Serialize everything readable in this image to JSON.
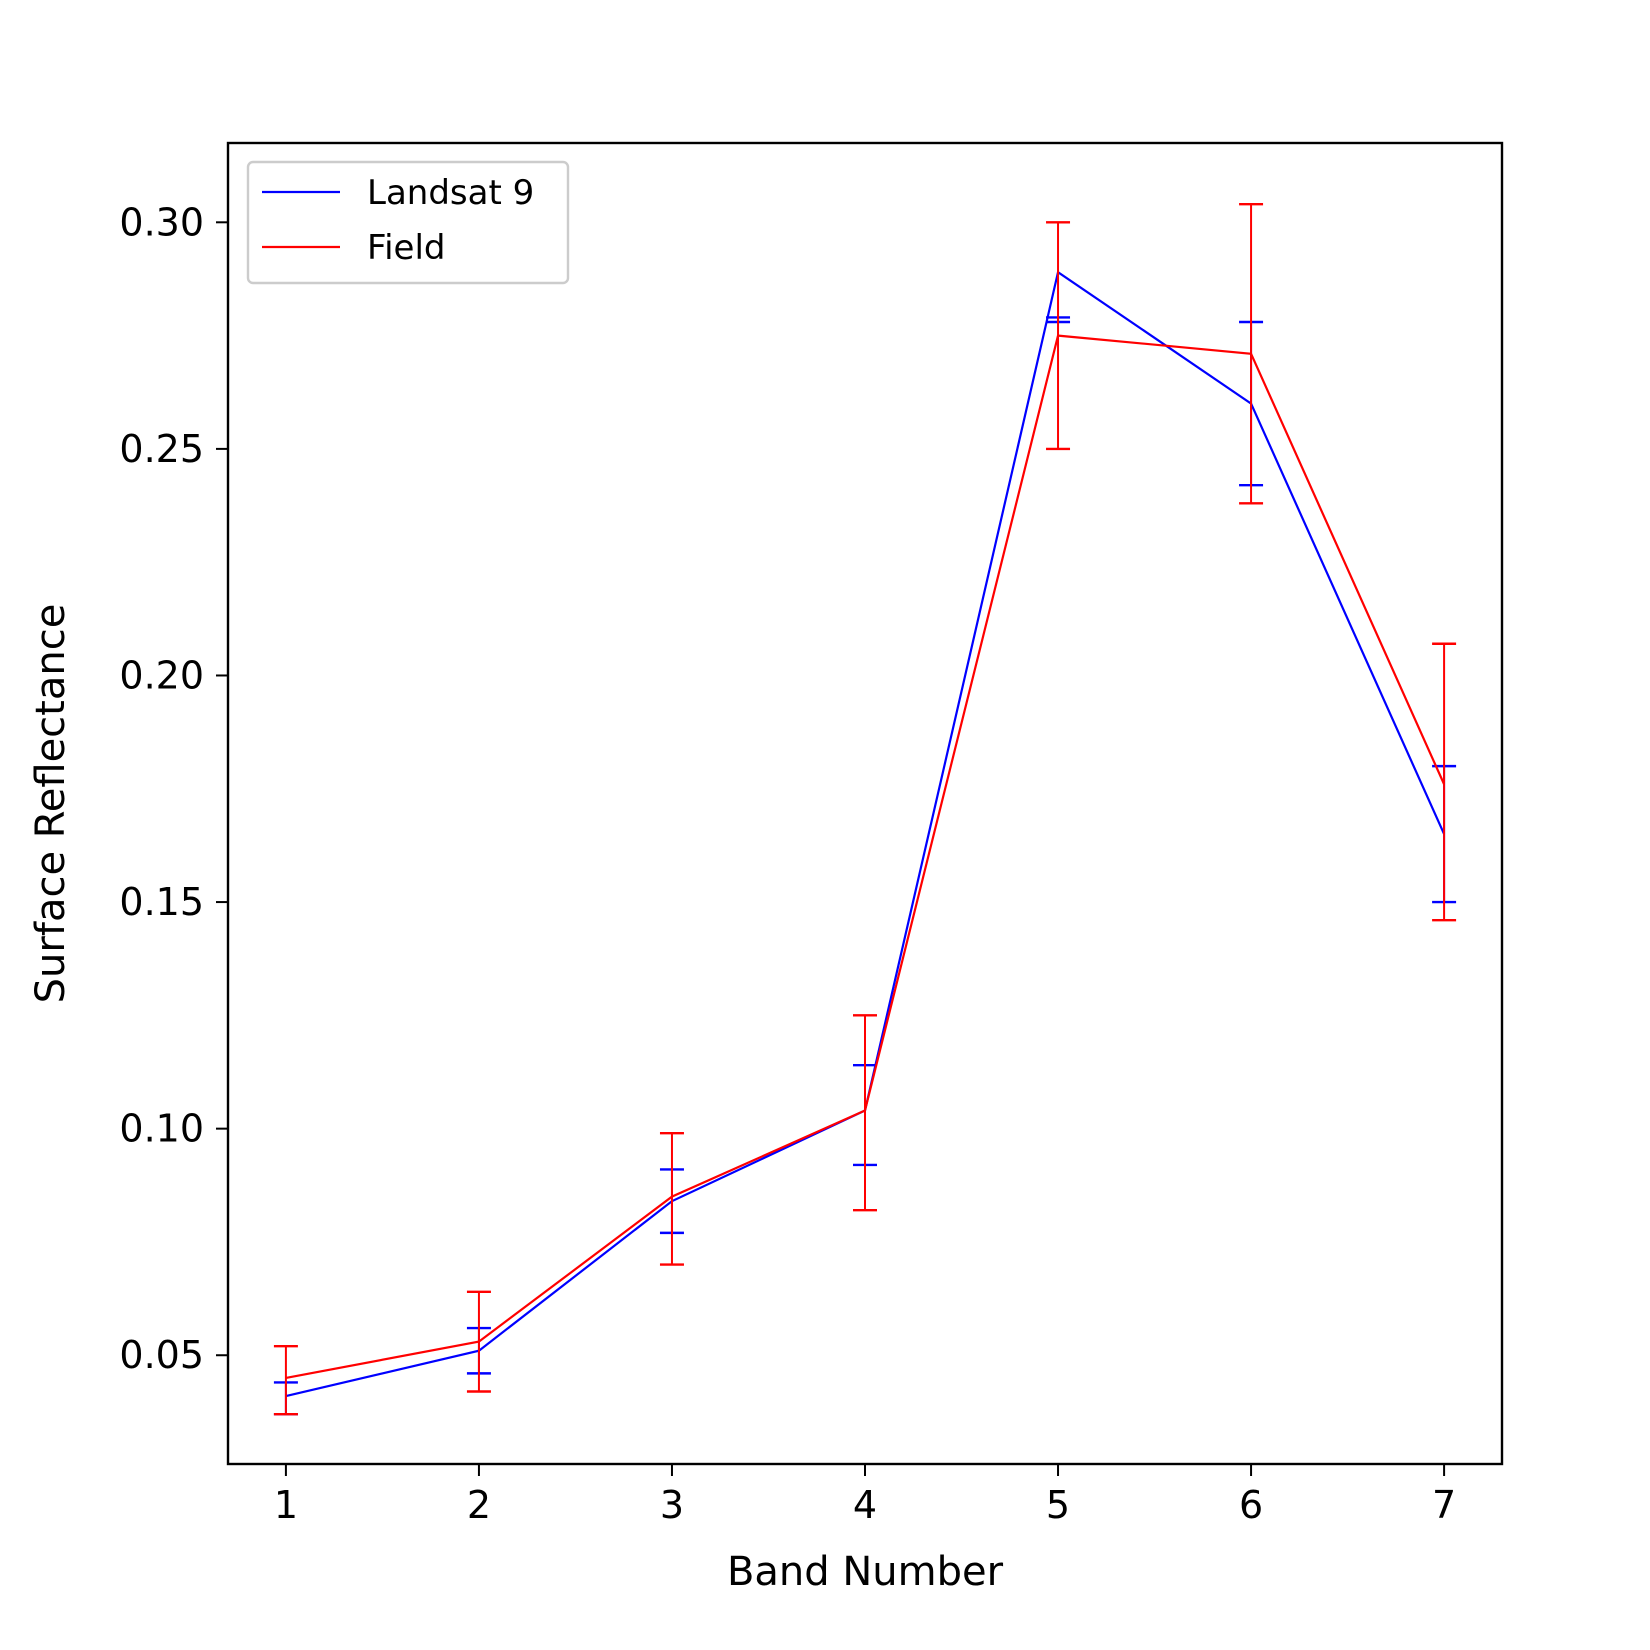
{
  "chart_data": {
    "type": "line",
    "title": "",
    "xlabel": "Band Number",
    "ylabel": "Surface Reflectance",
    "x": [
      1,
      2,
      3,
      4,
      5,
      6,
      7
    ],
    "x_ticks": [
      "1",
      "2",
      "3",
      "4",
      "5",
      "6",
      "7"
    ],
    "xlim": [
      0.7,
      7.3
    ],
    "ylim": [
      0.026,
      0.3175
    ],
    "y_ticks": [
      "0.05",
      "0.10",
      "0.15",
      "0.20",
      "0.25",
      "0.30"
    ],
    "grid": false,
    "legend_position": "upper-left",
    "series": [
      {
        "name": "Landsat 9",
        "color": "#0000ff",
        "values": [
          0.041,
          0.051,
          0.084,
          0.104,
          0.289,
          0.26,
          0.165
        ],
        "err_low": [
          0.037,
          0.046,
          0.077,
          0.092,
          0.278,
          0.242,
          0.15
        ],
        "err_high": [
          0.044,
          0.056,
          0.091,
          0.114,
          0.279,
          0.278,
          0.18
        ]
      },
      {
        "name": "Field",
        "color": "#ff0000",
        "values": [
          0.045,
          0.053,
          0.085,
          0.104,
          0.275,
          0.271,
          0.176
        ],
        "err_low": [
          0.037,
          0.042,
          0.07,
          0.082,
          0.25,
          0.238,
          0.146
        ],
        "err_high": [
          0.052,
          0.064,
          0.099,
          0.125,
          0.3,
          0.304,
          0.207
        ]
      }
    ]
  }
}
